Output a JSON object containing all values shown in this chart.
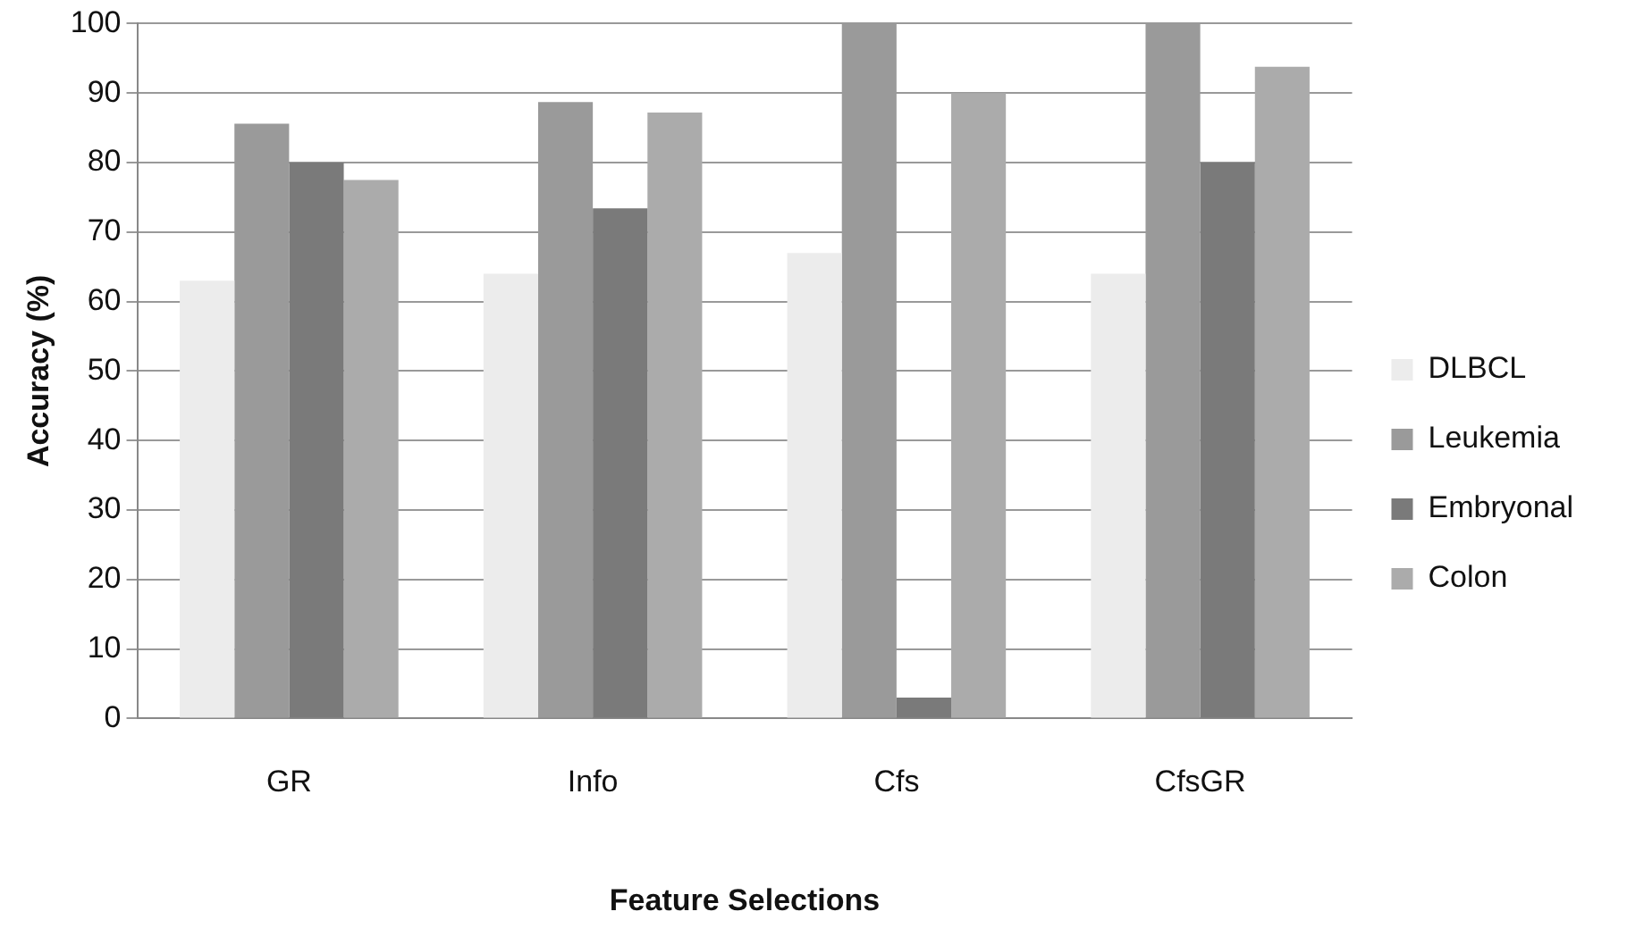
{
  "chart_data": {
    "type": "bar",
    "xlabel": "Feature Selections",
    "ylabel": "Accuracy (%)",
    "categories": [
      "GR",
      "Info",
      "Cfs",
      "CfsGR"
    ],
    "series": [
      {
        "name": "DLBCL",
        "color": "#ececec",
        "values": [
          63,
          64,
          67,
          64
        ]
      },
      {
        "name": "Leukemia",
        "color": "#9a9a9a",
        "values": [
          85.6,
          88.7,
          100,
          100
        ]
      },
      {
        "name": "Embryonal",
        "color": "#7a7a7a",
        "values": [
          80,
          73.4,
          3,
          80
        ]
      },
      {
        "name": "Colon",
        "color": "#ababab",
        "values": [
          77.5,
          87.2,
          90,
          93.8
        ]
      }
    ],
    "ylim": [
      0,
      100
    ],
    "yticks": [
      0,
      10,
      20,
      30,
      40,
      50,
      60,
      70,
      80,
      90,
      100
    ],
    "grid": "y",
    "legend": "right"
  }
}
